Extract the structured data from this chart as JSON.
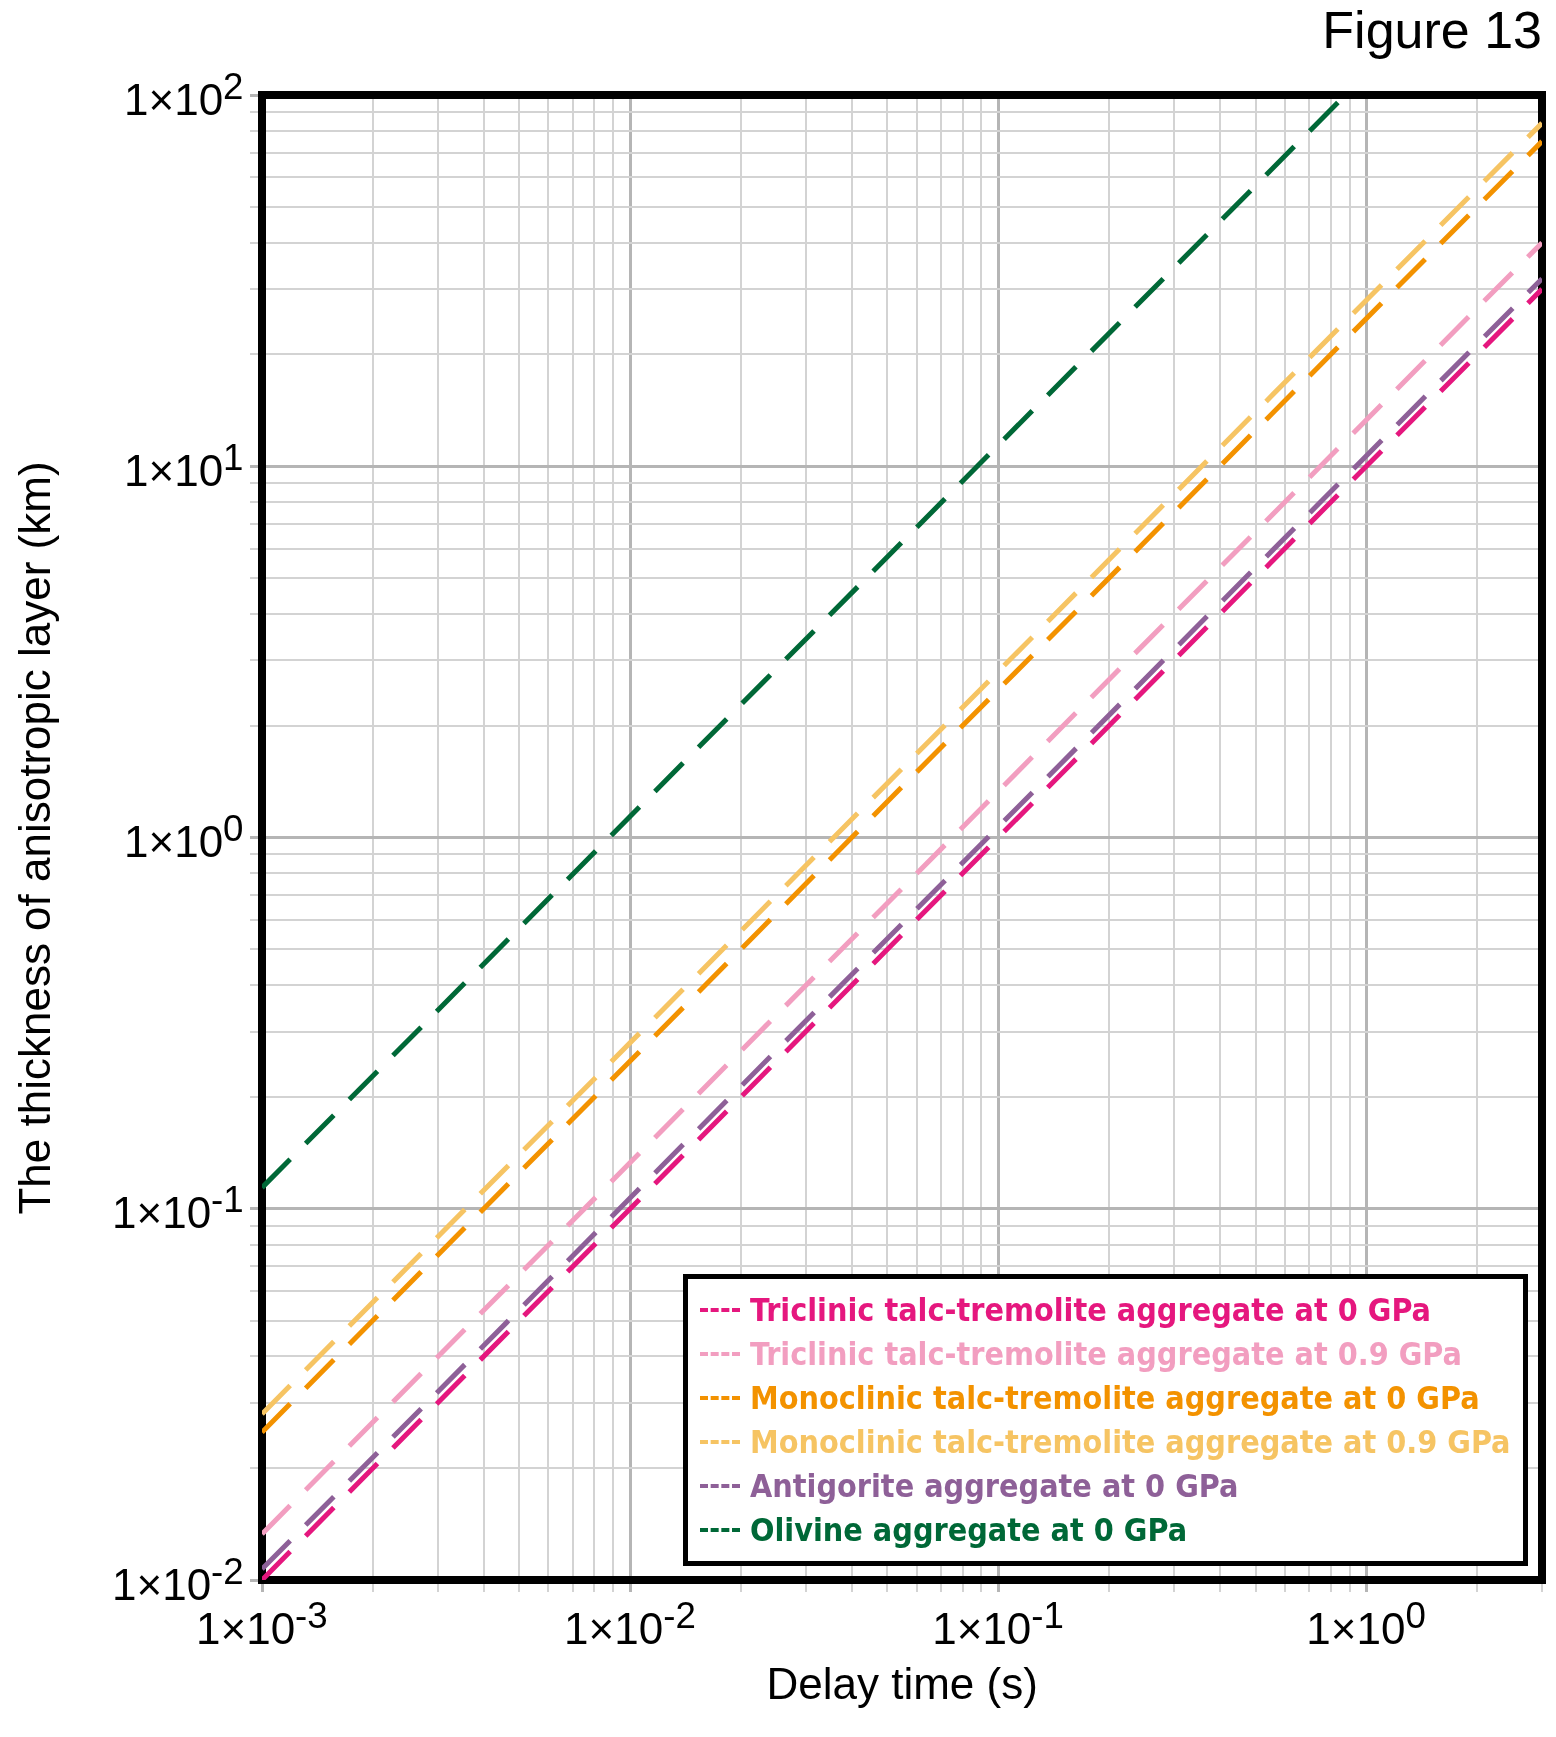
{
  "chart_data": {
    "type": "line",
    "title": "Figure 13",
    "xlabel": "Delay time (s)",
    "ylabel": "The thickness of anisotropic layer (km)",
    "log": "xy",
    "grid": true,
    "legend": "bottom right",
    "line_style": "dashed",
    "marker": "none",
    "xlim": [
      0.001,
      3
    ],
    "ylim": [
      0.01,
      100
    ],
    "xticks": [
      {
        "value": 0.001,
        "label": "1×10$^{-3}$"
      },
      {
        "value": 0.002,
        "label": null
      },
      {
        "value": 0.003,
        "label": null
      },
      {
        "value": 0.004,
        "label": null
      },
      {
        "value": 0.005,
        "label": null
      },
      {
        "value": 0.006,
        "label": null
      },
      {
        "value": 0.007,
        "label": null
      },
      {
        "value": 0.008,
        "label": null
      },
      {
        "value": 0.009,
        "label": null
      },
      {
        "value": 0.01,
        "label": "1×10$^{-2}$"
      },
      {
        "value": 0.02,
        "label": null
      },
      {
        "value": 0.03,
        "label": null
      },
      {
        "value": 0.04,
        "label": null
      },
      {
        "value": 0.05,
        "label": null
      },
      {
        "value": 0.06,
        "label": null
      },
      {
        "value": 0.07,
        "label": null
      },
      {
        "value": 0.08,
        "label": null
      },
      {
        "value": 0.09,
        "label": null
      },
      {
        "value": 0.1,
        "label": "1×10$^{-1}$"
      },
      {
        "value": 0.2,
        "label": null
      },
      {
        "value": 0.3,
        "label": null
      },
      {
        "value": 0.4,
        "label": null
      },
      {
        "value": 0.5,
        "label": null
      },
      {
        "value": 0.6,
        "label": null
      },
      {
        "value": 0.7,
        "label": null
      },
      {
        "value": 0.8,
        "label": null
      },
      {
        "value": 0.9,
        "label": null
      },
      {
        "value": 1,
        "label": "1×10$^{0}$"
      },
      {
        "value": 2,
        "label": null
      },
      {
        "value": 3,
        "label": null
      }
    ],
    "yticks": [
      {
        "value": 0.01,
        "label": "1×10$^{-2}$"
      },
      {
        "value": 0.02,
        "label": null
      },
      {
        "value": 0.03,
        "label": null
      },
      {
        "value": 0.04,
        "label": null
      },
      {
        "value": 0.05,
        "label": null
      },
      {
        "value": 0.06,
        "label": null
      },
      {
        "value": 0.07,
        "label": null
      },
      {
        "value": 0.08,
        "label": null
      },
      {
        "value": 0.09,
        "label": null
      },
      {
        "value": 0.1,
        "label": "1×10$^{-1}$"
      },
      {
        "value": 0.2,
        "label": null
      },
      {
        "value": 0.3,
        "label": null
      },
      {
        "value": 0.4,
        "label": null
      },
      {
        "value": 0.5,
        "label": null
      },
      {
        "value": 0.6,
        "label": null
      },
      {
        "value": 0.7,
        "label": null
      },
      {
        "value": 0.8,
        "label": null
      },
      {
        "value": 0.9,
        "label": null
      },
      {
        "value": 1,
        "label": "1×10$^{0}$"
      },
      {
        "value": 2,
        "label": null
      },
      {
        "value": 3,
        "label": null
      },
      {
        "value": 4,
        "label": null
      },
      {
        "value": 5,
        "label": null
      },
      {
        "value": 6,
        "label": null
      },
      {
        "value": 7,
        "label": null
      },
      {
        "value": 8,
        "label": null
      },
      {
        "value": 9,
        "label": null
      },
      {
        "value": 10,
        "label": "1×10$^{1}$"
      },
      {
        "value": 20,
        "label": null
      },
      {
        "value": 30,
        "label": null
      },
      {
        "value": 40,
        "label": null
      },
      {
        "value": 50,
        "label": null
      },
      {
        "value": 60,
        "label": null
      },
      {
        "value": 70,
        "label": null
      },
      {
        "value": 80,
        "label": null
      },
      {
        "value": 90,
        "label": null
      },
      {
        "value": 100,
        "label": "1×10$^{2}$"
      }
    ],
    "series": [
      {
        "name": "Triclinic talc-tremolite aggregate at 0 GPa",
        "color": "#e5177e",
        "x": [
          0.001,
          3
        ],
        "values": [
          0.01,
          30
        ]
      },
      {
        "name": "Triclinic talc-tremolite aggregate at 0.9 GPa",
        "color": "#f29ec0",
        "x": [
          0.001,
          3
        ],
        "values": [
          0.0133,
          40
        ]
      },
      {
        "name": "Monoclinic talc-tremolite aggregate at 0 GPa",
        "color": "#f39200",
        "x": [
          0.001,
          3
        ],
        "values": [
          0.025,
          75
        ]
      },
      {
        "name": "Monoclinic talc-tremolite aggregate at 0.9 GPa",
        "color": "#f6c463",
        "x": [
          0.001,
          3
        ],
        "values": [
          0.028,
          84
        ]
      },
      {
        "name": "Antigorite aggregate at 0 GPa",
        "color": "#8e6098",
        "x": [
          0.001,
          3
        ],
        "values": [
          0.0107,
          32
        ]
      },
      {
        "name": "Olivine aggregate at 0 GPa",
        "color": "#006837",
        "x": [
          0.001,
          0.877
        ],
        "values": [
          0.114,
          100
        ]
      }
    ]
  }
}
